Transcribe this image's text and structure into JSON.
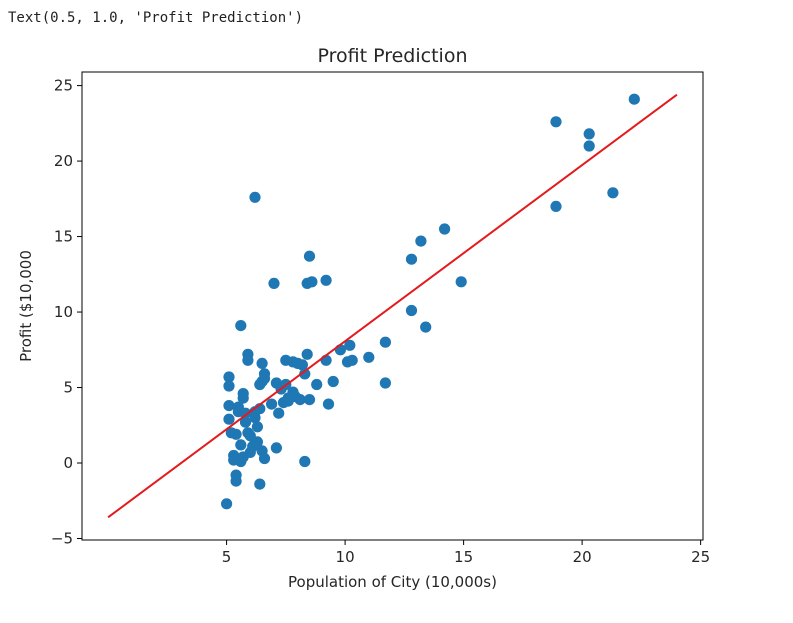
{
  "output_text": "Text(0.5, 1.0, 'Profit Prediction')",
  "chart_data": {
    "type": "scatter",
    "title": "Profit Prediction",
    "xlabel": "Population of City (10,000s)",
    "ylabel": "Profit ($10,000",
    "xlim": [
      -1.1,
      25.1
    ],
    "ylim": [
      -5.1,
      25.9
    ],
    "xticks": [
      5,
      10,
      15,
      20,
      25
    ],
    "yticks": [
      -5,
      0,
      5,
      10,
      15,
      20,
      25
    ],
    "grid": false,
    "colors": {
      "points": "#1f77b4",
      "line": "#e41a1c",
      "axes": "#000000"
    },
    "regression_line": {
      "x": [
        0,
        24
      ],
      "y": [
        -3.6,
        24.4
      ]
    },
    "points": [
      [
        5.0,
        -2.7
      ],
      [
        5.1,
        5.7
      ],
      [
        5.1,
        5.1
      ],
      [
        5.1,
        3.8
      ],
      [
        5.1,
        2.9
      ],
      [
        5.2,
        2.0
      ],
      [
        5.3,
        0.5
      ],
      [
        5.3,
        0.2
      ],
      [
        5.4,
        -0.8
      ],
      [
        5.4,
        -1.2
      ],
      [
        5.4,
        1.9
      ],
      [
        5.5,
        3.4
      ],
      [
        5.5,
        3.7
      ],
      [
        5.6,
        9.1
      ],
      [
        5.6,
        0.1
      ],
      [
        5.6,
        1.2
      ],
      [
        5.7,
        4.3
      ],
      [
        5.7,
        4.6
      ],
      [
        5.7,
        0.4
      ],
      [
        5.8,
        3.3
      ],
      [
        5.8,
        2.7
      ],
      [
        5.9,
        7.2
      ],
      [
        5.9,
        6.8
      ],
      [
        5.9,
        2.0
      ],
      [
        6.0,
        1.8
      ],
      [
        6.0,
        0.7
      ],
      [
        6.1,
        1.1
      ],
      [
        6.2,
        17.6
      ],
      [
        6.2,
        3.0
      ],
      [
        6.2,
        3.4
      ],
      [
        6.3,
        2.4
      ],
      [
        6.3,
        1.4
      ],
      [
        6.4,
        5.2
      ],
      [
        6.4,
        3.6
      ],
      [
        6.4,
        -1.4
      ],
      [
        6.5,
        6.6
      ],
      [
        6.5,
        5.4
      ],
      [
        6.5,
        0.8
      ],
      [
        6.6,
        5.9
      ],
      [
        6.6,
        5.6
      ],
      [
        6.6,
        0.3
      ],
      [
        6.9,
        3.9
      ],
      [
        7.0,
        11.9
      ],
      [
        7.1,
        5.3
      ],
      [
        7.1,
        1.0
      ],
      [
        7.2,
        3.3
      ],
      [
        7.3,
        4.9
      ],
      [
        7.4,
        4.0
      ],
      [
        7.5,
        6.8
      ],
      [
        7.5,
        5.2
      ],
      [
        7.6,
        4.3
      ],
      [
        7.6,
        4.1
      ],
      [
        7.8,
        6.7
      ],
      [
        7.8,
        4.7
      ],
      [
        7.9,
        4.4
      ],
      [
        8.0,
        6.6
      ],
      [
        8.1,
        4.2
      ],
      [
        8.2,
        6.5
      ],
      [
        8.3,
        5.9
      ],
      [
        8.3,
        0.1
      ],
      [
        8.4,
        7.2
      ],
      [
        8.4,
        11.9
      ],
      [
        8.5,
        13.7
      ],
      [
        8.6,
        12.0
      ],
      [
        8.5,
        4.2
      ],
      [
        8.8,
        5.2
      ],
      [
        9.2,
        6.8
      ],
      [
        9.2,
        12.1
      ],
      [
        9.3,
        3.9
      ],
      [
        9.5,
        5.4
      ],
      [
        9.8,
        7.5
      ],
      [
        10.1,
        6.7
      ],
      [
        10.2,
        7.8
      ],
      [
        10.3,
        6.8
      ],
      [
        11.0,
        7.0
      ],
      [
        11.7,
        8.0
      ],
      [
        11.7,
        5.3
      ],
      [
        12.8,
        13.5
      ],
      [
        12.8,
        10.1
      ],
      [
        13.2,
        14.7
      ],
      [
        13.4,
        9.0
      ],
      [
        14.2,
        15.5
      ],
      [
        14.9,
        12.0
      ],
      [
        18.9,
        22.6
      ],
      [
        18.9,
        17.0
      ],
      [
        20.3,
        21.8
      ],
      [
        20.3,
        21.0
      ],
      [
        21.3,
        17.9
      ],
      [
        22.2,
        24.1
      ]
    ]
  }
}
